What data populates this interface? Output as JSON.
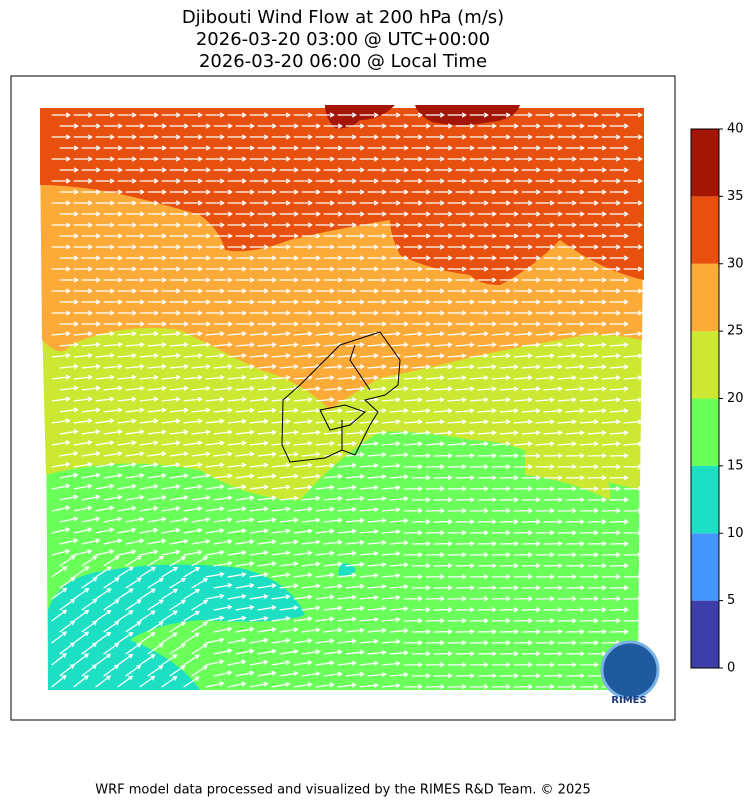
{
  "title": [
    "Djibouti Wind Flow at 200 hPa (m/s)",
    "2026-03-20 03:00 @ UTC+00:00",
    "2026-03-20 06:00 @ Local Time"
  ],
  "colorbar": {
    "ticks": [
      0,
      5,
      10,
      15,
      20,
      25,
      30,
      35,
      40
    ],
    "colors": [
      "#3e3ea8",
      "#4496ff",
      "#1ddfc4",
      "#6bff5a",
      "#cce832",
      "#fdab38",
      "#e8500f",
      "#a31505"
    ]
  },
  "logo": "RIMES",
  "footer": "WRF model data processed and visualized by the RIMES R&D Team. © 2025"
}
